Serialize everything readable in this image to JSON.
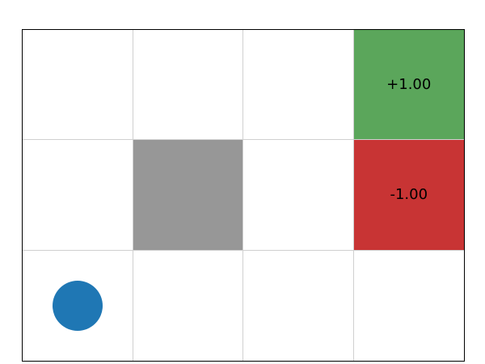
{
  "gridworld": {
    "rows": 3,
    "cols": 4,
    "cells": [
      {
        "row": 0,
        "col": 0,
        "kind": "empty",
        "label": ""
      },
      {
        "row": 0,
        "col": 1,
        "kind": "empty",
        "label": ""
      },
      {
        "row": 0,
        "col": 2,
        "kind": "empty",
        "label": ""
      },
      {
        "row": 0,
        "col": 3,
        "kind": "goal",
        "label": "+1.00"
      },
      {
        "row": 1,
        "col": 0,
        "kind": "empty",
        "label": ""
      },
      {
        "row": 1,
        "col": 1,
        "kind": "wall",
        "label": ""
      },
      {
        "row": 1,
        "col": 2,
        "kind": "empty",
        "label": ""
      },
      {
        "row": 1,
        "col": 3,
        "kind": "penalty",
        "label": "-1.00"
      },
      {
        "row": 2,
        "col": 0,
        "kind": "agent",
        "label": ""
      },
      {
        "row": 2,
        "col": 1,
        "kind": "empty",
        "label": ""
      },
      {
        "row": 2,
        "col": 2,
        "kind": "empty",
        "label": ""
      },
      {
        "row": 2,
        "col": 3,
        "kind": "empty",
        "label": ""
      }
    ],
    "colors": {
      "goal": "#5ba65b",
      "penalty": "#c83434",
      "wall": "#979797",
      "empty": "#ffffff",
      "agent": "#1f77b4"
    }
  }
}
